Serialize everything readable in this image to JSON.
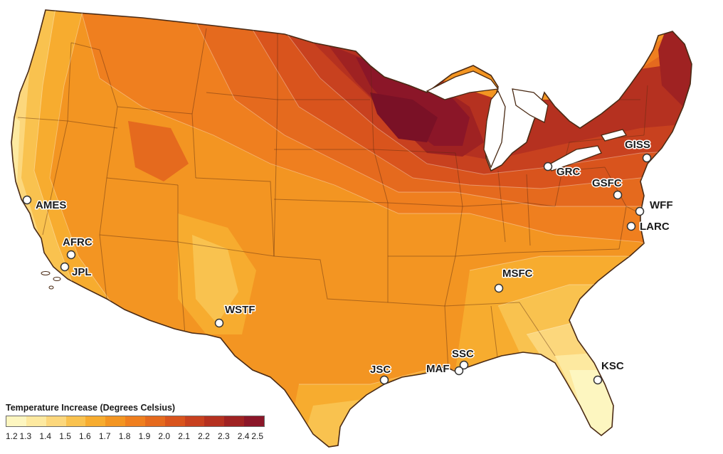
{
  "legend": {
    "title": "Temperature Increase (Degrees Celsius)",
    "ticks": [
      "1.2",
      "1.3",
      "1.4",
      "1.5",
      "1.6",
      "1.7",
      "1.8",
      "1.9",
      "2.0",
      "2.1",
      "2.2",
      "2.3",
      "2.4",
      "2.5"
    ],
    "colors": [
      "#fdf6c0",
      "#fde9a0",
      "#fcd77c",
      "#f9c24f",
      "#f7ac2f",
      "#f39522",
      "#ef7f1f",
      "#e56a1e",
      "#d9541d",
      "#c8411f",
      "#b53120",
      "#9f2222",
      "#8b1628"
    ]
  },
  "sites": [
    {
      "id": "ames",
      "label": "AMES"
    },
    {
      "id": "afrc",
      "label": "AFRC"
    },
    {
      "id": "jpl",
      "label": "JPL"
    },
    {
      "id": "wstf",
      "label": "WSTF"
    },
    {
      "id": "jsc",
      "label": "JSC"
    },
    {
      "id": "ssc",
      "label": "SSC"
    },
    {
      "id": "maf",
      "label": "MAF"
    },
    {
      "id": "msfc",
      "label": "MSFC"
    },
    {
      "id": "ksc",
      "label": "KSC"
    },
    {
      "id": "grc",
      "label": "GRC"
    },
    {
      "id": "giss",
      "label": "GISS"
    },
    {
      "id": "gsfc",
      "label": "GSFC"
    },
    {
      "id": "wff",
      "label": "WFF"
    },
    {
      "id": "larc",
      "label": "LARC"
    }
  ]
}
